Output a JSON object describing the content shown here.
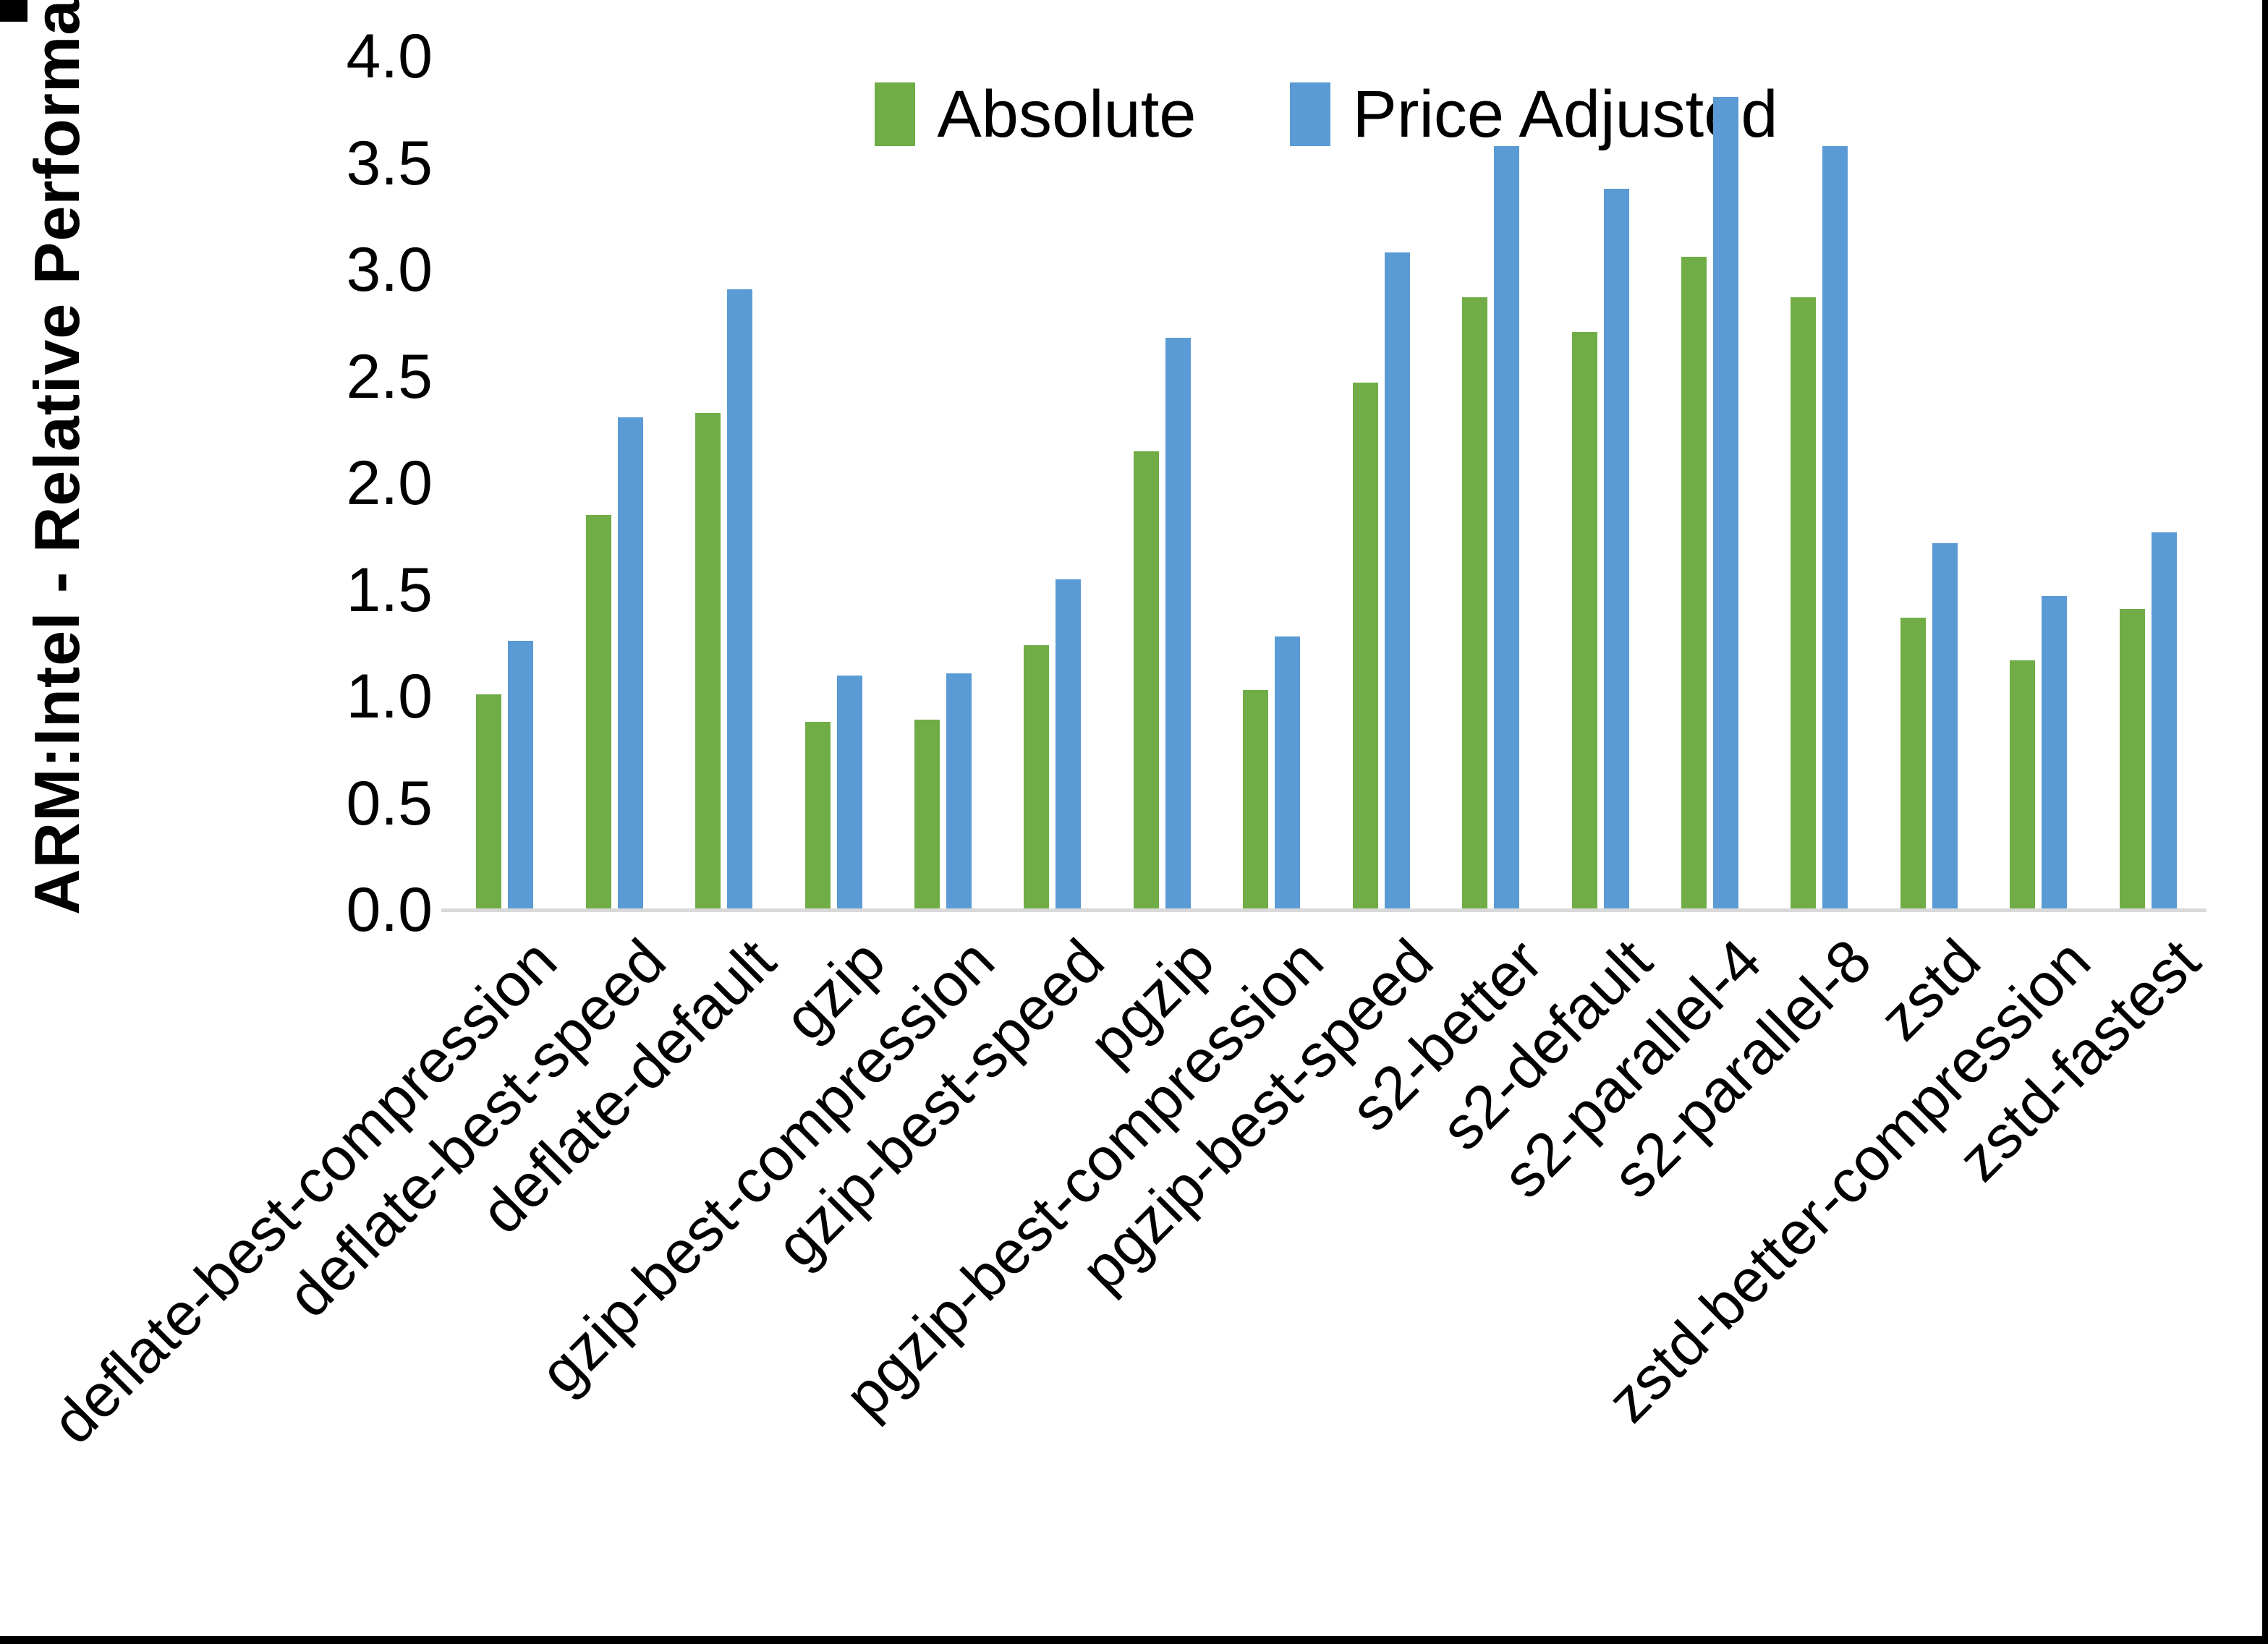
{
  "figure": {
    "background": "#FFFFFF",
    "border_color": "#000000"
  },
  "chart_data": {
    "type": "bar",
    "title": "",
    "xlabel": "",
    "ylabel": "ARM:Intel - Relative Performance",
    "ylim": [
      0,
      4
    ],
    "ytick_step": 0.5,
    "yticks": [
      "0.0",
      "0.5",
      "1.0",
      "1.5",
      "2.0",
      "2.5",
      "3.0",
      "3.5",
      "4.0"
    ],
    "grid": false,
    "legend_position": "top-center",
    "axis_line_color": "#D9D9D9",
    "text_color": "#000000",
    "categories": [
      "deflate-best-compression",
      "deflate-best-speed",
      "deflate-default",
      "gzip",
      "gzip-best-compression",
      "gzip-best-speed",
      "pgzip",
      "pgzip-best-compression",
      "pgzip-best-speed",
      "s2-better",
      "s2-default",
      "s2-parallel-4",
      "s2-parallel-8",
      "zstd",
      "zstd-better-compression",
      "zstd-fastest"
    ],
    "series": [
      {
        "name": "Absolute",
        "color": "#70AD47",
        "values": [
          1.01,
          1.85,
          2.33,
          0.88,
          0.89,
          1.24,
          2.15,
          1.03,
          2.47,
          2.87,
          2.71,
          3.06,
          2.87,
          1.37,
          1.17,
          1.41
        ]
      },
      {
        "name": "Price Adjusted",
        "color": "#5B9BD5",
        "values": [
          1.26,
          2.31,
          2.91,
          1.1,
          1.11,
          1.55,
          2.68,
          1.28,
          3.08,
          3.58,
          3.38,
          3.81,
          3.58,
          1.72,
          1.47,
          1.77
        ]
      }
    ]
  }
}
